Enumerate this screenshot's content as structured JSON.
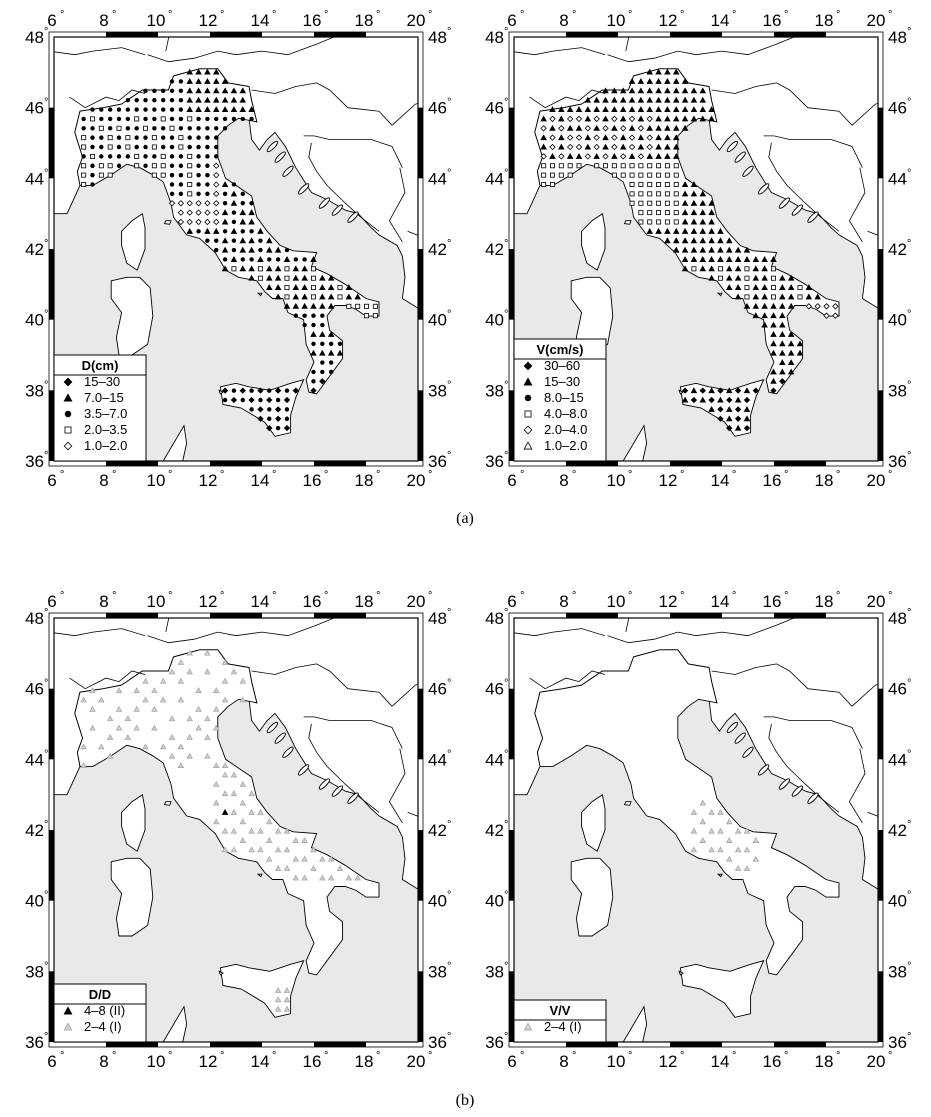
{
  "axis": {
    "lon_ticks": [
      "6",
      "8",
      "10",
      "12",
      "14",
      "16",
      "18",
      "20"
    ],
    "lat_ticks": [
      "48",
      "46",
      "44",
      "42",
      "40",
      "38",
      "36"
    ],
    "degree_symbol": "°",
    "lon_range": [
      6,
      20
    ],
    "lat_range": [
      36,
      48
    ]
  },
  "colors": {
    "sea": "#e9e9e9",
    "land": "#ffffff",
    "coast": "#000000",
    "marker_dark": "#000000",
    "marker_grey": "#a8a8a8"
  },
  "panels": [
    {
      "legend": {
        "title": "D(cm)",
        "entries": [
          {
            "symbol": "diamond-filled",
            "label": "15–30"
          },
          {
            "symbol": "triangle-filled",
            "label": "7.0–15"
          },
          {
            "symbol": "circle-filled",
            "label": "3.5–7.0"
          },
          {
            "symbol": "square-open",
            "label": "2.0–3.5"
          },
          {
            "symbol": "diamond-open",
            "label": "1.0–2.0"
          }
        ]
      }
    },
    {
      "legend": {
        "title": "V(cm/s)",
        "entries": [
          {
            "symbol": "diamond-filled",
            "label": "30–60"
          },
          {
            "symbol": "triangle-filled",
            "label": "15–30"
          },
          {
            "symbol": "circle-filled",
            "label": "8.0–15"
          },
          {
            "symbol": "square-open",
            "label": "4.0–8.0"
          },
          {
            "symbol": "diamond-open",
            "label": "2.0–4.0"
          },
          {
            "symbol": "triangle-open",
            "label": "1.0–2.0"
          }
        ]
      }
    },
    {
      "legend": {
        "title": "D/D",
        "entries": [
          {
            "symbol": "triangle-filled",
            "label": "4–8 (II)"
          },
          {
            "symbol": "triangle-grey",
            "label": "2–4 (I)"
          }
        ]
      }
    },
    {
      "legend": {
        "title": "V/V",
        "entries": [
          {
            "symbol": "triangle-grey",
            "label": "2–4 (I)"
          }
        ]
      }
    }
  ],
  "captions": [
    "(a)",
    "(b)"
  ]
}
